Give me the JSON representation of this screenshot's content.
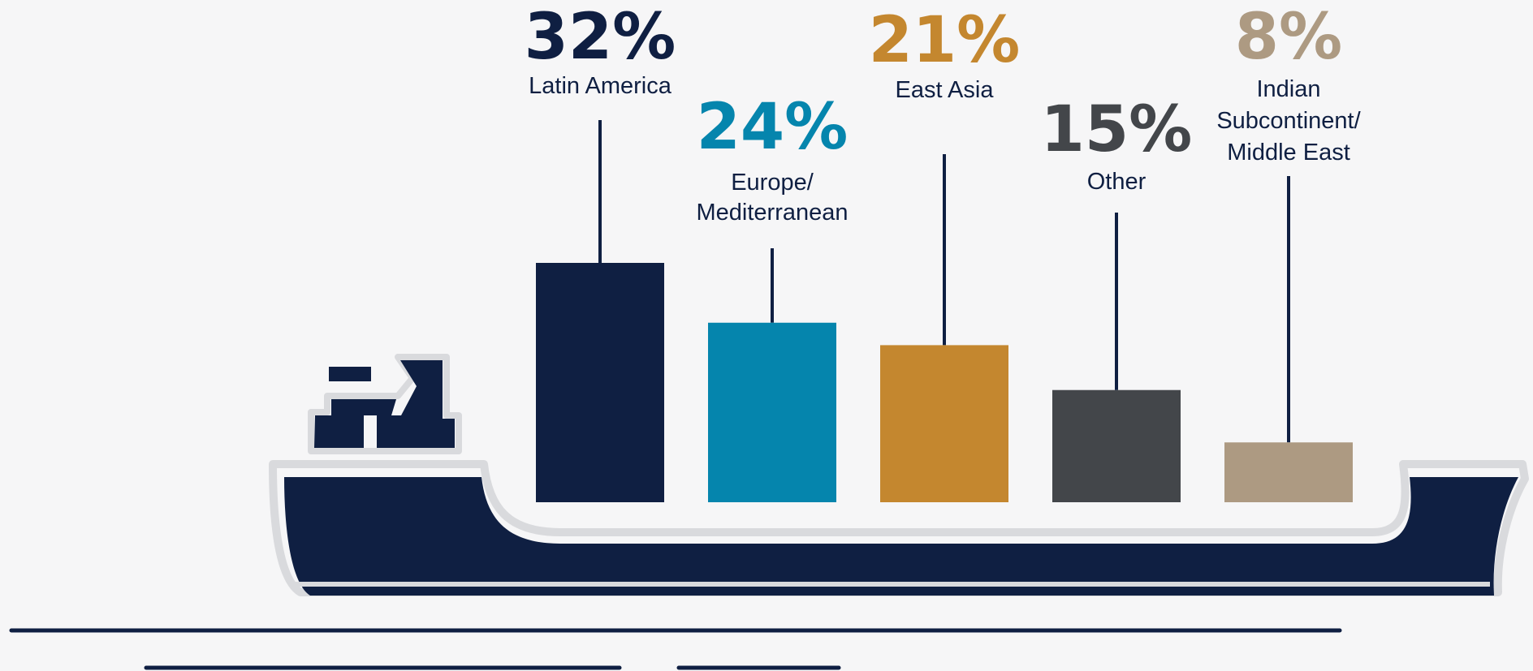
{
  "chart_data": {
    "type": "bar",
    "title": "",
    "categories": [
      "Latin America",
      "Europe/\nMediterranean",
      "East Asia",
      "Other",
      "Indian\nSubcontinent/\nMiddle East"
    ],
    "values": [
      32,
      24,
      21,
      15,
      8
    ],
    "value_labels": [
      "32%",
      "24%",
      "21%",
      "15%",
      "8%"
    ],
    "unit": "%",
    "colors": [
      "#0f1f42",
      "#0585ad",
      "#c4872f",
      "#43464a",
      "#ad9a82"
    ],
    "ylim": [
      0,
      32
    ],
    "grid": false,
    "legend": "none"
  },
  "decoration": {
    "ship_color": "#0f1f42",
    "ship_outline_color": "#d9dadd",
    "icon": "cargo-ship-icon"
  }
}
